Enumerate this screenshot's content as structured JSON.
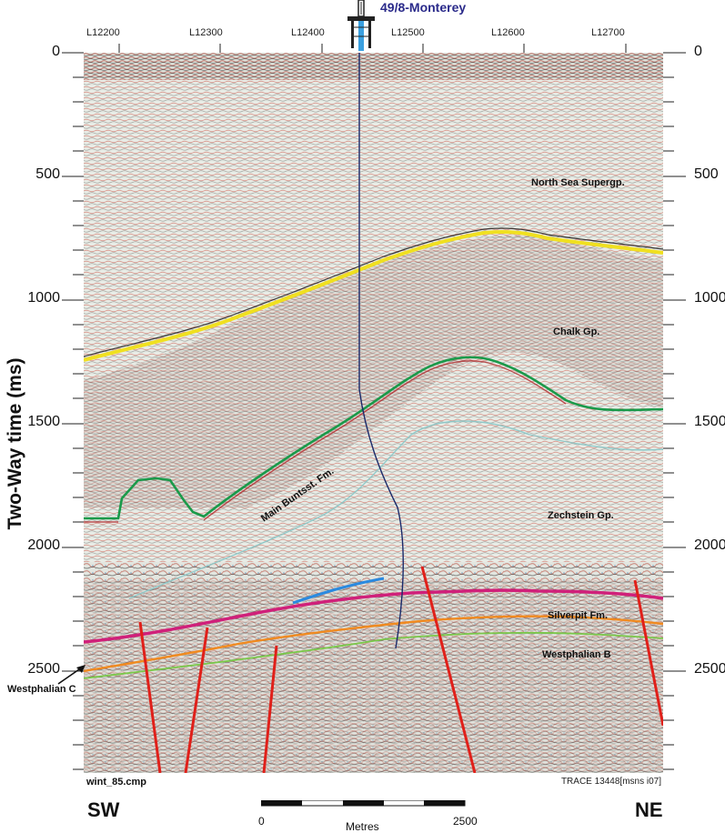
{
  "well": {
    "name": "49/8-Monterey"
  },
  "traces": [
    "L12200",
    "L12300",
    "L12400",
    "L12500",
    "L12600",
    "L12700"
  ],
  "y_axis": {
    "title": "Two-Way time (ms)",
    "ticks": [
      "0",
      "500",
      "1000",
      "1500",
      "2000",
      "2500"
    ]
  },
  "formations": {
    "north_sea": "North Sea Supergp.",
    "chalk": "Chalk Gp.",
    "buntsst": "Main Buntsst. Fm.",
    "zechstein": "Zechstein Gp.",
    "silverpit": "Silverpit Fm.",
    "westphalian_b": "Westphalian B",
    "westphalian_c": "Westphalian C"
  },
  "colors": {
    "chalk_top": "#f0e020",
    "zechstein_top": "#1a9a4a",
    "silverpit_top": "#d0207a",
    "orange_horizon": "#f08a20",
    "light_green_horizon": "#7ac84a",
    "blue_horizon": "#2a8ae0",
    "faults": "#e0201a",
    "well_path": "#1a2a6a"
  },
  "footer": {
    "file": "wint_85.cmp",
    "trace_info": "TRACE 13448[msns i07]",
    "sw": "SW",
    "ne": "NE",
    "scale_start": "0",
    "scale_end": "2500",
    "scale_unit": "Metres"
  }
}
